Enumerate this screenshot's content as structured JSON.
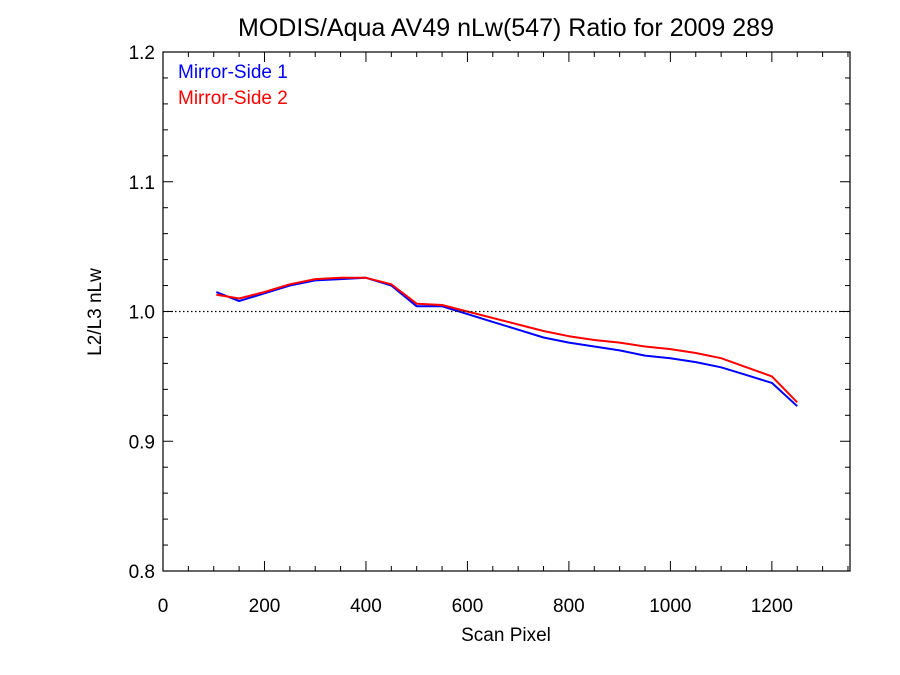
{
  "chart_data": {
    "type": "line",
    "title": "MODIS/Aqua AV49 nLw(547) Ratio for 2009 289",
    "xlabel": "Scan Pixel",
    "ylabel": "L2/L3 nLw",
    "xlim": [
      0,
      1354
    ],
    "ylim": [
      0.8,
      1.2
    ],
    "xticks": [
      0,
      200,
      400,
      600,
      800,
      1000,
      1200
    ],
    "xtick_labels": [
      "0",
      "200",
      "400",
      "600",
      "800",
      "1000",
      "1200"
    ],
    "yticks": [
      0.8,
      0.9,
      1.0,
      1.1,
      1.2
    ],
    "ytick_labels": [
      "0.8",
      "0.9",
      "1.0",
      "1.1",
      "1.2"
    ],
    "reference_line": 1.0,
    "grid": false,
    "legend_position": "top-left",
    "colors": {
      "mirror_side_1": "#0000ff",
      "mirror_side_2": "#ff0000",
      "axes": "#000000"
    },
    "x": [
      105,
      150,
      200,
      250,
      300,
      350,
      400,
      450,
      500,
      550,
      600,
      650,
      700,
      750,
      800,
      850,
      900,
      950,
      1000,
      1050,
      1100,
      1150,
      1200,
      1250
    ],
    "series": [
      {
        "name": "Mirror-Side 1",
        "color": "#0000ff",
        "values": [
          1.015,
          1.008,
          1.014,
          1.02,
          1.024,
          1.025,
          1.026,
          1.02,
          1.004,
          1.004,
          0.998,
          0.992,
          0.986,
          0.98,
          0.976,
          0.973,
          0.97,
          0.966,
          0.964,
          0.961,
          0.957,
          0.951,
          0.945,
          0.927
        ]
      },
      {
        "name": "Mirror-Side 2",
        "color": "#ff0000",
        "values": [
          1.013,
          1.01,
          1.015,
          1.021,
          1.025,
          1.026,
          1.026,
          1.021,
          1.006,
          1.005,
          1.0,
          0.995,
          0.99,
          0.985,
          0.981,
          0.978,
          0.976,
          0.973,
          0.971,
          0.968,
          0.964,
          0.957,
          0.95,
          0.93
        ]
      }
    ]
  }
}
